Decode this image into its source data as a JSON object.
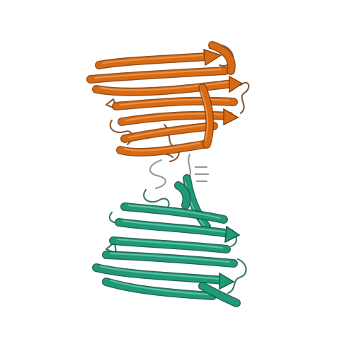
{
  "figure": {
    "kind": "protein ribbon structure",
    "background": "#ffffff",
    "domains": [
      {
        "name": "upper-domain",
        "color": "#d86a12",
        "shadow": "#8a3d05",
        "highlight": "#f7b37a",
        "coil_color": "#8f5a3a"
      },
      {
        "name": "lower-domain",
        "color": "#1f9a78",
        "shadow": "#0f5a45",
        "highlight": "#8fe0c6",
        "coil_color": "#3d7a6a"
      }
    ],
    "linker_color": "#9a9a9a"
  }
}
